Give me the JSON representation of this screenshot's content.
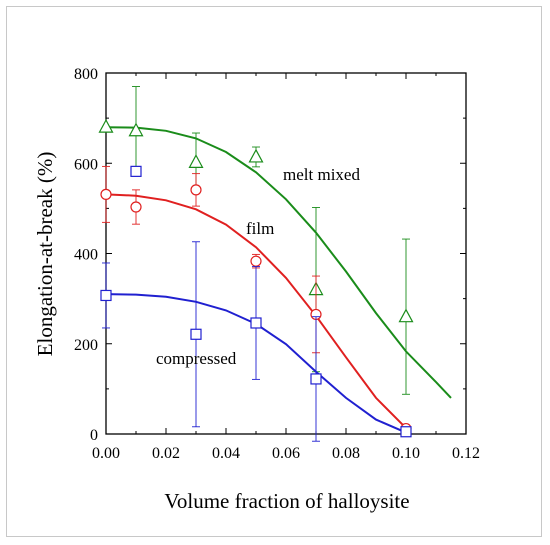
{
  "chart_data": {
    "type": "scatter",
    "title": "",
    "xlabel": "Volume fraction of halloysite",
    "ylabel": "Elongation-at-break (%)",
    "xlim": [
      0,
      0.12
    ],
    "ylim": [
      0,
      800
    ],
    "xticks": [
      "0.00",
      "0.02",
      "0.04",
      "0.06",
      "0.08",
      "0.10",
      "0.12"
    ],
    "yticks": [
      "0",
      "200",
      "400",
      "600",
      "800"
    ],
    "grid": false,
    "series": [
      {
        "name": "melt mixed",
        "color": "#1a8c1a",
        "marker": "triangle",
        "points": [
          {
            "x": 0.0,
            "y": 680,
            "err": 0
          },
          {
            "x": 0.01,
            "y": 672,
            "err": 98
          },
          {
            "x": 0.03,
            "y": 602,
            "err": 65
          },
          {
            "x": 0.05,
            "y": 614,
            "err": 22
          },
          {
            "x": 0.07,
            "y": 320,
            "err": 182
          },
          {
            "x": 0.1,
            "y": 260,
            "err": 172
          }
        ],
        "fit": [
          [
            0,
            680
          ],
          [
            0.01,
            679
          ],
          [
            0.02,
            672
          ],
          [
            0.03,
            655
          ],
          [
            0.04,
            625
          ],
          [
            0.05,
            580
          ],
          [
            0.06,
            520
          ],
          [
            0.07,
            446
          ],
          [
            0.08,
            360
          ],
          [
            0.09,
            268
          ],
          [
            0.1,
            183
          ],
          [
            0.11,
            115
          ],
          [
            0.115,
            80
          ]
        ]
      },
      {
        "name": "film",
        "color": "#e02020",
        "marker": "circle",
        "points": [
          {
            "x": 0.0,
            "y": 531,
            "err": 62
          },
          {
            "x": 0.01,
            "y": 503,
            "err": 38
          },
          {
            "x": 0.03,
            "y": 541,
            "err": 36
          },
          {
            "x": 0.05,
            "y": 383,
            "err": 15
          },
          {
            "x": 0.07,
            "y": 265,
            "err": 85
          },
          {
            "x": 0.1,
            "y": 12,
            "err": 0
          }
        ],
        "fit": [
          [
            0,
            531
          ],
          [
            0.01,
            528
          ],
          [
            0.02,
            518
          ],
          [
            0.03,
            498
          ],
          [
            0.04,
            464
          ],
          [
            0.05,
            414
          ],
          [
            0.06,
            346
          ],
          [
            0.07,
            262
          ],
          [
            0.08,
            170
          ],
          [
            0.09,
            80
          ],
          [
            0.1,
            13
          ]
        ]
      },
      {
        "name": "compressed",
        "color": "#2020d0",
        "marker": "square",
        "points": [
          {
            "x": 0.0,
            "y": 307,
            "err": 72
          },
          {
            "x": 0.01,
            "y": 582,
            "err": 0
          },
          {
            "x": 0.03,
            "y": 221,
            "err": 205
          },
          {
            "x": 0.05,
            "y": 246,
            "err": 125
          },
          {
            "x": 0.07,
            "y": 122,
            "err": 138
          },
          {
            "x": 0.1,
            "y": 5,
            "err": 0
          }
        ],
        "fit": [
          [
            0,
            310
          ],
          [
            0.01,
            309
          ],
          [
            0.02,
            304
          ],
          [
            0.03,
            293
          ],
          [
            0.04,
            274
          ],
          [
            0.05,
            244
          ],
          [
            0.06,
            199
          ],
          [
            0.07,
            138
          ],
          [
            0.08,
            80
          ],
          [
            0.09,
            32
          ],
          [
            0.1,
            3
          ]
        ]
      }
    ],
    "annotations": [
      "melt mixed",
      "film",
      "compressed"
    ]
  }
}
